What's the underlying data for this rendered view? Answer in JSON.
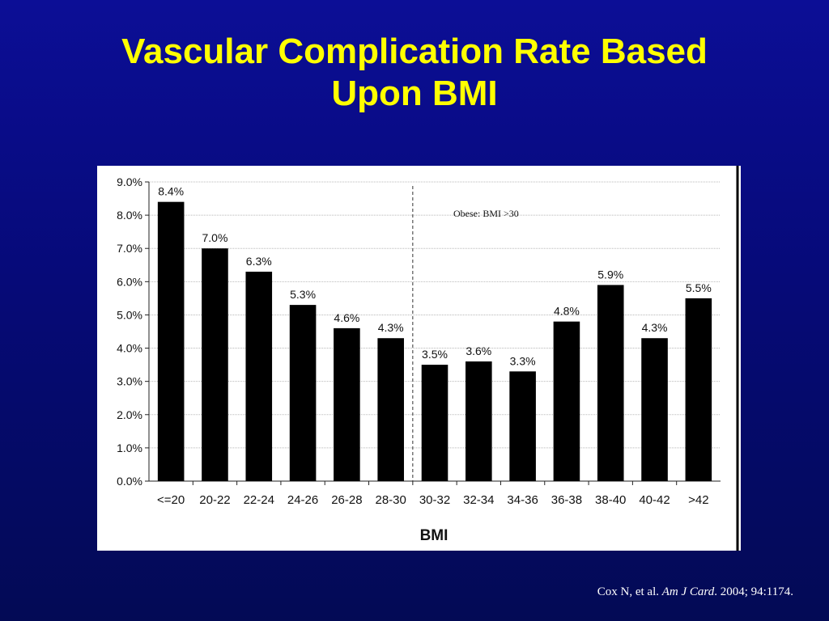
{
  "slide": {
    "title_line1": "Vascular Complication Rate Based",
    "title_line2": "Upon BMI",
    "background_color": "#0a0c8a",
    "title_color": "#ffff00"
  },
  "citation": {
    "authors": "Cox N, et al.",
    "journal": "Am J Card",
    "rest": "2004; 94:1174."
  },
  "chart_data": {
    "type": "bar",
    "title": "",
    "xlabel": "BMI",
    "ylabel": "",
    "ylim": [
      0,
      9
    ],
    "yticks": [
      "0.0%",
      "1.0%",
      "2.0%",
      "3.0%",
      "4.0%",
      "5.0%",
      "6.0%",
      "7.0%",
      "8.0%",
      "9.0%"
    ],
    "categories": [
      "<=20",
      "20-22",
      "22-24",
      "24-26",
      "26-28",
      "28-30",
      "30-32",
      "32-34",
      "34-36",
      "36-38",
      "38-40",
      "40-42",
      ">42"
    ],
    "values": [
      8.4,
      7.0,
      6.3,
      5.3,
      4.6,
      4.3,
      3.5,
      3.6,
      3.3,
      4.8,
      5.9,
      4.3,
      5.5
    ],
    "data_labels": [
      "8.4%",
      "7.0%",
      "6.3%",
      "5.3%",
      "4.6%",
      "4.3%",
      "3.5%",
      "3.6%",
      "3.3%",
      "4.8%",
      "5.9%",
      "4.3%",
      "5.5%"
    ],
    "annotation": "Obese:  BMI >30",
    "divider_after_category": "28-30",
    "grid": true,
    "bar_color": "#000000"
  }
}
